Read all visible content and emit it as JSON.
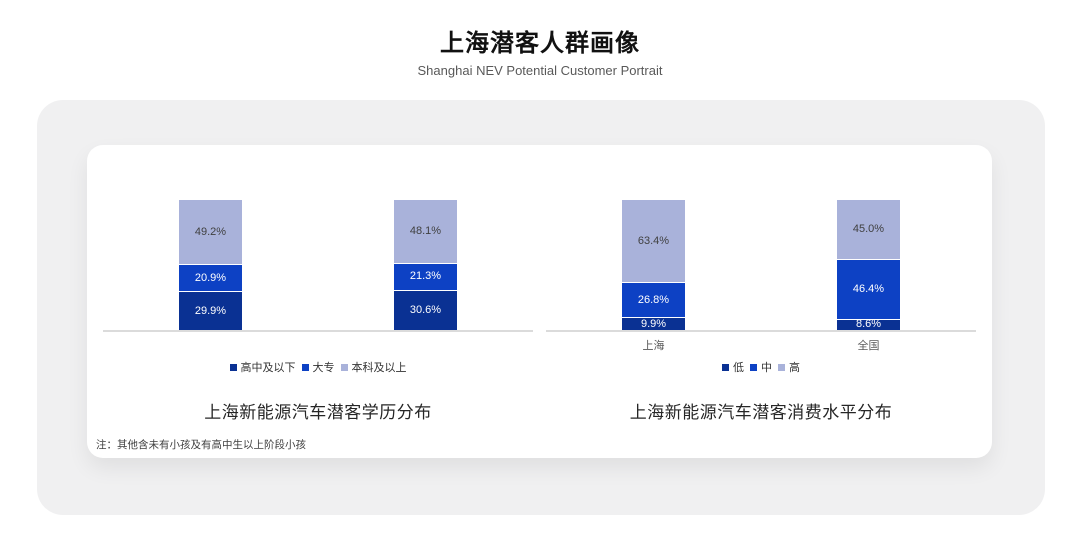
{
  "header": {
    "title": "上海潜客人群画像",
    "subtitle": "Shanghai NEV Potential Customer Portrait"
  },
  "footnote": "注：其他含未有小孩及有高中生以上阶段小孩",
  "colors": {
    "series_dark_blue": "#0A3193",
    "series_bright_blue": "#0D41C4",
    "series_light_blue": "#A9B2DA",
    "axis_line": "#DBDBDB",
    "panel_background": "#F0F0F1",
    "card_background": "#FFFFFF"
  },
  "chart_data": [
    {
      "type": "bar",
      "stacked": true,
      "title": "上海新能源汽车潜客学历分布",
      "categories": [
        "",
        ""
      ],
      "series": [
        {
          "name": "高中及以下",
          "values": [
            29.9,
            30.6
          ],
          "color": "#0A3193",
          "label_color": "#FFFFFF"
        },
        {
          "name": "大专",
          "values": [
            20.9,
            21.3
          ],
          "color": "#0D41C4",
          "label_color": "#FFFFFF"
        },
        {
          "name": "本科及以上",
          "values": [
            49.2,
            48.1
          ],
          "color": "#A9B2DA",
          "label_color": "#404040"
        }
      ],
      "ylim": [
        0,
        100
      ],
      "value_suffix": "%",
      "value_decimals": 1,
      "legend_position": "bottom",
      "grid": false
    },
    {
      "type": "bar",
      "stacked": true,
      "title": "上海新能源汽车潜客消费水平分布",
      "categories": [
        "上海",
        "全国"
      ],
      "series": [
        {
          "name": "低",
          "values": [
            9.9,
            8.6
          ],
          "color": "#0A3193",
          "label_color": "#FFFFFF"
        },
        {
          "name": "中",
          "values": [
            26.8,
            46.4
          ],
          "color": "#0D41C4",
          "label_color": "#FFFFFF"
        },
        {
          "name": "高",
          "values": [
            63.4,
            45.0
          ],
          "color": "#A9B2DA",
          "label_color": "#404040"
        }
      ],
      "ylim": [
        0,
        100
      ],
      "value_suffix": "%",
      "value_decimals": 1,
      "legend_position": "bottom",
      "grid": false
    }
  ]
}
